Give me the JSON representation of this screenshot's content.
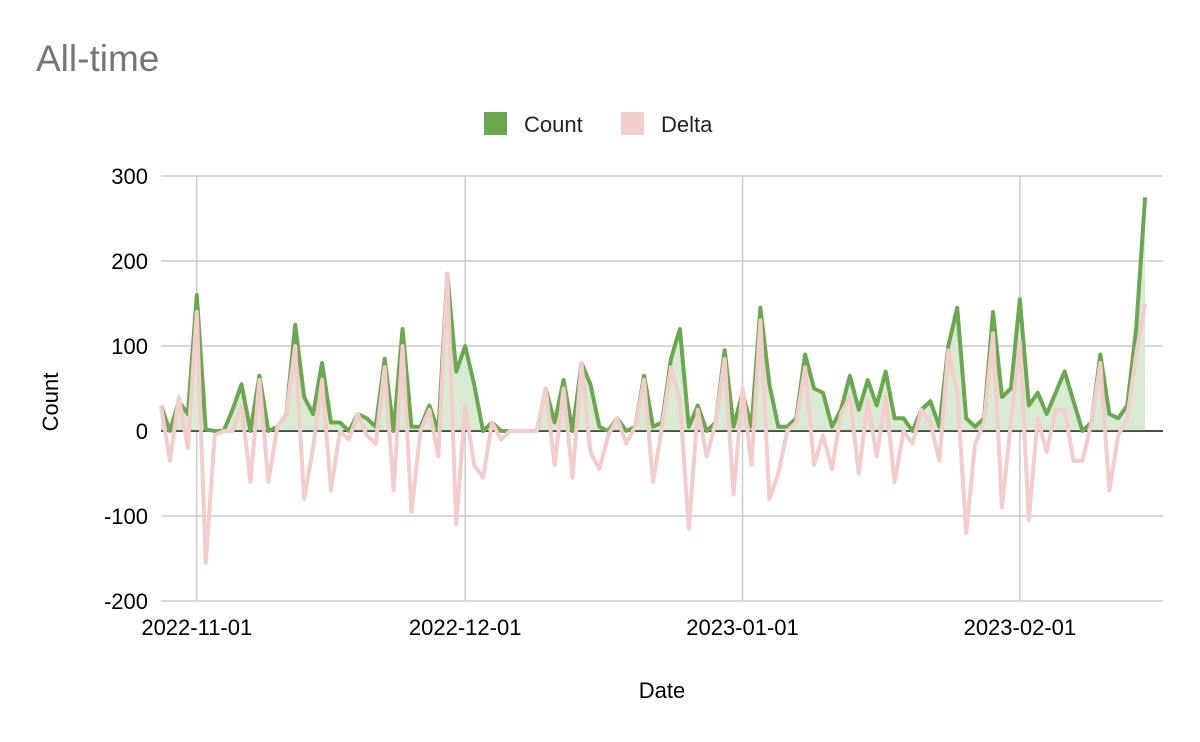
{
  "chart_data": {
    "type": "line",
    "title": "All-time",
    "xlabel": "Date",
    "ylabel": "Count",
    "ylim": [
      -200,
      300
    ],
    "yticks": [
      -200,
      -100,
      0,
      100,
      200,
      300
    ],
    "xticks": [
      "2022-11-01",
      "2022-12-01",
      "2023-01-01",
      "2023-02-01"
    ],
    "x_range": [
      "2022-10-28",
      "2023-02-17"
    ],
    "grid": true,
    "legend_position": "top",
    "series": [
      {
        "name": "Count",
        "color": "#6aa84f",
        "fill": "#d9ead3",
        "points": [
          [
            "2022-10-28",
            30
          ],
          [
            "2022-10-29",
            0
          ],
          [
            "2022-10-30",
            35
          ],
          [
            "2022-10-31",
            20
          ],
          [
            "2022-11-01",
            160
          ],
          [
            "2022-11-02",
            2
          ],
          [
            "2022-11-03",
            0
          ],
          [
            "2022-11-04",
            0
          ],
          [
            "2022-11-05",
            25
          ],
          [
            "2022-11-06",
            55
          ],
          [
            "2022-11-07",
            0
          ],
          [
            "2022-11-08",
            65
          ],
          [
            "2022-11-09",
            0
          ],
          [
            "2022-11-10",
            5
          ],
          [
            "2022-11-11",
            20
          ],
          [
            "2022-11-12",
            125
          ],
          [
            "2022-11-13",
            40
          ],
          [
            "2022-11-14",
            20
          ],
          [
            "2022-11-15",
            80
          ],
          [
            "2022-11-16",
            10
          ],
          [
            "2022-11-17",
            10
          ],
          [
            "2022-11-18",
            0
          ],
          [
            "2022-11-19",
            20
          ],
          [
            "2022-11-20",
            15
          ],
          [
            "2022-11-21",
            5
          ],
          [
            "2022-11-22",
            85
          ],
          [
            "2022-11-23",
            0
          ],
          [
            "2022-11-24",
            120
          ],
          [
            "2022-11-25",
            5
          ],
          [
            "2022-11-26",
            5
          ],
          [
            "2022-11-27",
            30
          ],
          [
            "2022-11-28",
            0
          ],
          [
            "2022-11-29",
            185
          ],
          [
            "2022-11-30",
            70
          ],
          [
            "2022-12-01",
            100
          ],
          [
            "2022-12-02",
            55
          ],
          [
            "2022-12-03",
            0
          ],
          [
            "2022-12-04",
            10
          ],
          [
            "2022-12-05",
            0
          ],
          [
            "2022-12-06",
            0
          ],
          [
            "2022-12-07",
            0
          ],
          [
            "2022-12-08",
            0
          ],
          [
            "2022-12-09",
            0
          ],
          [
            "2022-12-10",
            50
          ],
          [
            "2022-12-11",
            10
          ],
          [
            "2022-12-12",
            60
          ],
          [
            "2022-12-13",
            0
          ],
          [
            "2022-12-14",
            80
          ],
          [
            "2022-12-15",
            55
          ],
          [
            "2022-12-16",
            5
          ],
          [
            "2022-12-17",
            0
          ],
          [
            "2022-12-18",
            15
          ],
          [
            "2022-12-19",
            0
          ],
          [
            "2022-12-20",
            5
          ],
          [
            "2022-12-21",
            65
          ],
          [
            "2022-12-22",
            5
          ],
          [
            "2022-12-23",
            10
          ],
          [
            "2022-12-24",
            85
          ],
          [
            "2022-12-25",
            120
          ],
          [
            "2022-12-26",
            5
          ],
          [
            "2022-12-27",
            30
          ],
          [
            "2022-12-28",
            0
          ],
          [
            "2022-12-29",
            10
          ],
          [
            "2022-12-30",
            95
          ],
          [
            "2022-12-31",
            5
          ],
          [
            "2023-01-01",
            45
          ],
          [
            "2023-01-02",
            5
          ],
          [
            "2023-01-03",
            145
          ],
          [
            "2023-01-04",
            55
          ],
          [
            "2023-01-05",
            5
          ],
          [
            "2023-01-06",
            5
          ],
          [
            "2023-01-07",
            15
          ],
          [
            "2023-01-08",
            90
          ],
          [
            "2023-01-09",
            50
          ],
          [
            "2023-01-10",
            45
          ],
          [
            "2023-01-11",
            5
          ],
          [
            "2023-01-12",
            25
          ],
          [
            "2023-01-13",
            65
          ],
          [
            "2023-01-14",
            25
          ],
          [
            "2023-01-15",
            60
          ],
          [
            "2023-01-16",
            30
          ],
          [
            "2023-01-17",
            70
          ],
          [
            "2023-01-18",
            15
          ],
          [
            "2023-01-19",
            15
          ],
          [
            "2023-01-20",
            0
          ],
          [
            "2023-01-21",
            25
          ],
          [
            "2023-01-22",
            35
          ],
          [
            "2023-01-23",
            5
          ],
          [
            "2023-01-24",
            100
          ],
          [
            "2023-01-25",
            145
          ],
          [
            "2023-01-26",
            15
          ],
          [
            "2023-01-27",
            5
          ],
          [
            "2023-01-28",
            15
          ],
          [
            "2023-01-29",
            140
          ],
          [
            "2023-01-30",
            40
          ],
          [
            "2023-01-31",
            50
          ],
          [
            "2023-02-01",
            155
          ],
          [
            "2023-02-02",
            30
          ],
          [
            "2023-02-03",
            45
          ],
          [
            "2023-02-04",
            20
          ],
          [
            "2023-02-05",
            45
          ],
          [
            "2023-02-06",
            70
          ],
          [
            "2023-02-07",
            35
          ],
          [
            "2023-02-08",
            0
          ],
          [
            "2023-02-09",
            10
          ],
          [
            "2023-02-10",
            90
          ],
          [
            "2023-02-11",
            20
          ],
          [
            "2023-02-12",
            15
          ],
          [
            "2023-02-13",
            30
          ],
          [
            "2023-02-14",
            120
          ],
          [
            "2023-02-15",
            275
          ]
        ]
      },
      {
        "name": "Delta",
        "color": "#f4cccc",
        "points": [
          [
            "2022-10-28",
            30
          ],
          [
            "2022-10-29",
            -35
          ],
          [
            "2022-10-30",
            40
          ],
          [
            "2022-10-31",
            -20
          ],
          [
            "2022-11-01",
            140
          ],
          [
            "2022-11-02",
            -155
          ],
          [
            "2022-11-03",
            -5
          ],
          [
            "2022-11-04",
            0
          ],
          [
            "2022-11-05",
            0
          ],
          [
            "2022-11-06",
            30
          ],
          [
            "2022-11-07",
            -60
          ],
          [
            "2022-11-08",
            60
          ],
          [
            "2022-11-09",
            -60
          ],
          [
            "2022-11-10",
            5
          ],
          [
            "2022-11-11",
            20
          ],
          [
            "2022-11-12",
            100
          ],
          [
            "2022-11-13",
            -80
          ],
          [
            "2022-11-14",
            -20
          ],
          [
            "2022-11-15",
            60
          ],
          [
            "2022-11-16",
            -70
          ],
          [
            "2022-11-17",
            0
          ],
          [
            "2022-11-18",
            -10
          ],
          [
            "2022-11-19",
            20
          ],
          [
            "2022-11-20",
            -5
          ],
          [
            "2022-11-21",
            -15
          ],
          [
            "2022-11-22",
            75
          ],
          [
            "2022-11-23",
            -70
          ],
          [
            "2022-11-24",
            100
          ],
          [
            "2022-11-25",
            -95
          ],
          [
            "2022-11-26",
            0
          ],
          [
            "2022-11-27",
            25
          ],
          [
            "2022-11-28",
            -30
          ],
          [
            "2022-11-29",
            185
          ],
          [
            "2022-11-30",
            -110
          ],
          [
            "2022-12-01",
            30
          ],
          [
            "2022-12-02",
            -40
          ],
          [
            "2022-12-03",
            -55
          ],
          [
            "2022-12-04",
            10
          ],
          [
            "2022-12-05",
            -10
          ],
          [
            "2022-12-06",
            0
          ],
          [
            "2022-12-07",
            0
          ],
          [
            "2022-12-08",
            0
          ],
          [
            "2022-12-09",
            0
          ],
          [
            "2022-12-10",
            50
          ],
          [
            "2022-12-11",
            -40
          ],
          [
            "2022-12-12",
            50
          ],
          [
            "2022-12-13",
            -55
          ],
          [
            "2022-12-14",
            80
          ],
          [
            "2022-12-15",
            -25
          ],
          [
            "2022-12-16",
            -45
          ],
          [
            "2022-12-17",
            -5
          ],
          [
            "2022-12-18",
            15
          ],
          [
            "2022-12-19",
            -15
          ],
          [
            "2022-12-20",
            5
          ],
          [
            "2022-12-21",
            60
          ],
          [
            "2022-12-22",
            -60
          ],
          [
            "2022-12-23",
            5
          ],
          [
            "2022-12-24",
            75
          ],
          [
            "2022-12-25",
            35
          ],
          [
            "2022-12-26",
            -115
          ],
          [
            "2022-12-27",
            25
          ],
          [
            "2022-12-28",
            -30
          ],
          [
            "2022-12-29",
            10
          ],
          [
            "2022-12-30",
            85
          ],
          [
            "2022-12-31",
            -75
          ],
          [
            "2023-01-01",
            50
          ],
          [
            "2023-01-02",
            -40
          ],
          [
            "2023-01-03",
            130
          ],
          [
            "2023-01-04",
            -80
          ],
          [
            "2023-01-05",
            -50
          ],
          [
            "2023-01-06",
            0
          ],
          [
            "2023-01-07",
            10
          ],
          [
            "2023-01-08",
            75
          ],
          [
            "2023-01-09",
            -40
          ],
          [
            "2023-01-10",
            -5
          ],
          [
            "2023-01-11",
            -45
          ],
          [
            "2023-01-12",
            20
          ],
          [
            "2023-01-13",
            40
          ],
          [
            "2023-01-14",
            -50
          ],
          [
            "2023-01-15",
            35
          ],
          [
            "2023-01-16",
            -30
          ],
          [
            "2023-01-17",
            40
          ],
          [
            "2023-01-18",
            -60
          ],
          [
            "2023-01-19",
            0
          ],
          [
            "2023-01-20",
            -15
          ],
          [
            "2023-01-21",
            25
          ],
          [
            "2023-01-22",
            10
          ],
          [
            "2023-01-23",
            -35
          ],
          [
            "2023-01-24",
            95
          ],
          [
            "2023-01-25",
            45
          ],
          [
            "2023-01-26",
            -120
          ],
          [
            "2023-01-27",
            -15
          ],
          [
            "2023-01-28",
            10
          ],
          [
            "2023-01-29",
            115
          ],
          [
            "2023-01-30",
            -90
          ],
          [
            "2023-01-31",
            10
          ],
          [
            "2023-02-01",
            105
          ],
          [
            "2023-02-02",
            -105
          ],
          [
            "2023-02-03",
            15
          ],
          [
            "2023-02-04",
            -25
          ],
          [
            "2023-02-05",
            25
          ],
          [
            "2023-02-06",
            25
          ],
          [
            "2023-02-07",
            -35
          ],
          [
            "2023-02-08",
            -35
          ],
          [
            "2023-02-09",
            10
          ],
          [
            "2023-02-10",
            80
          ],
          [
            "2023-02-11",
            -70
          ],
          [
            "2023-02-12",
            -5
          ],
          [
            "2023-02-13",
            15
          ],
          [
            "2023-02-14",
            90
          ],
          [
            "2023-02-15",
            150
          ]
        ]
      }
    ]
  }
}
